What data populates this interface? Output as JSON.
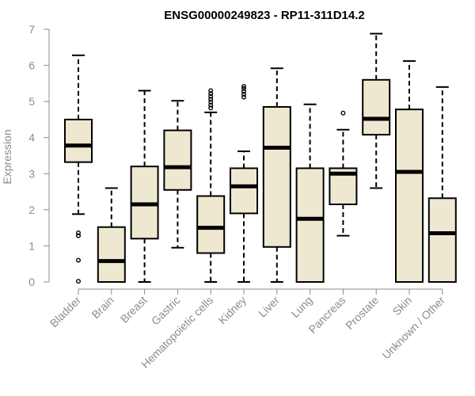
{
  "chart_data": {
    "type": "box",
    "title": "ENSG00000249823 - RP11-311D14.2",
    "ylabel": "Expression",
    "xlabel": "",
    "ylim": [
      0,
      7
    ],
    "yticks": [
      0,
      1,
      2,
      3,
      4,
      5,
      6,
      7
    ],
    "grid": false,
    "colors": {
      "box_fill": "#efe8d0",
      "stroke": "#000000",
      "axis": "#8c8c8c"
    },
    "categories": [
      "Bladder",
      "Brain",
      "Breast",
      "Gastric",
      "Hematopoietic cells",
      "Kidney",
      "Liver",
      "Lung",
      "Pancreas",
      "Prostate",
      "Skin",
      "Unknown / Other"
    ],
    "boxes": [
      {
        "whisker_low": 1.88,
        "q1": 3.32,
        "median": 3.78,
        "q3": 4.5,
        "whisker_high": 6.28,
        "outliers": [
          1.28,
          1.36,
          0.6,
          0.02
        ]
      },
      {
        "whisker_low": 0.0,
        "q1": 0.0,
        "median": 0.58,
        "q3": 1.52,
        "whisker_high": 2.6,
        "outliers": []
      },
      {
        "whisker_low": 0.0,
        "q1": 1.2,
        "median": 2.15,
        "q3": 3.2,
        "whisker_high": 5.3,
        "outliers": []
      },
      {
        "whisker_low": 0.95,
        "q1": 2.55,
        "median": 3.18,
        "q3": 4.2,
        "whisker_high": 5.02,
        "outliers": []
      },
      {
        "whisker_low": 0.0,
        "q1": 0.8,
        "median": 1.5,
        "q3": 2.38,
        "whisker_high": 4.7,
        "outliers": [
          4.82,
          4.9,
          4.98,
          5.06,
          5.14,
          5.22,
          5.3
        ]
      },
      {
        "whisker_low": 0.0,
        "q1": 1.9,
        "median": 2.65,
        "q3": 3.15,
        "whisker_high": 3.62,
        "outliers": [
          5.12,
          5.2,
          5.28,
          5.36,
          5.42
        ]
      },
      {
        "whisker_low": 0.0,
        "q1": 0.97,
        "median": 3.72,
        "q3": 4.85,
        "whisker_high": 5.92,
        "outliers": []
      },
      {
        "whisker_low": 0.0,
        "q1": 0.0,
        "median": 1.75,
        "q3": 3.15,
        "whisker_high": 4.92,
        "outliers": []
      },
      {
        "whisker_low": 1.28,
        "q1": 2.15,
        "median": 3.0,
        "q3": 3.15,
        "whisker_high": 4.22,
        "outliers": [
          4.68
        ]
      },
      {
        "whisker_low": 2.6,
        "q1": 4.08,
        "median": 4.52,
        "q3": 5.6,
        "whisker_high": 6.88,
        "outliers": []
      },
      {
        "whisker_low": 0.0,
        "q1": 0.0,
        "median": 3.05,
        "q3": 4.78,
        "whisker_high": 6.12,
        "outliers": []
      },
      {
        "whisker_low": 0.0,
        "q1": 0.0,
        "median": 1.35,
        "q3": 2.32,
        "whisker_high": 5.4,
        "outliers": []
      }
    ]
  }
}
